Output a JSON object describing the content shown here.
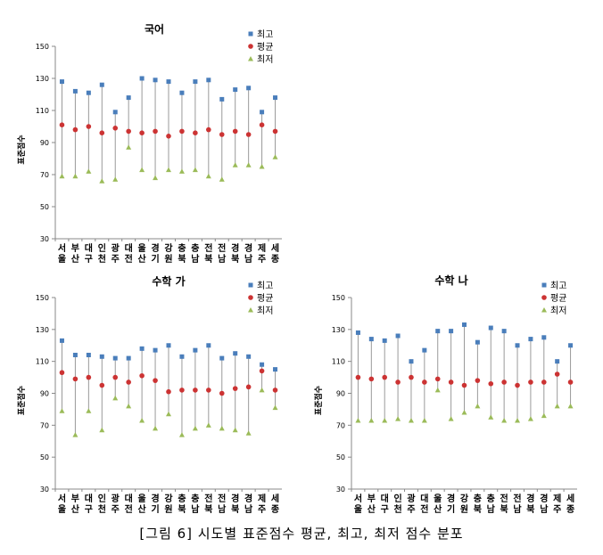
{
  "caption": "[그림 6] 시도별 표준점수 평균, 최고, 최저 점수 분포",
  "chart_data": [
    {
      "type": "scatter",
      "title": "국어",
      "ylabel": "표준점수",
      "ylim": [
        30,
        150
      ],
      "yticks": [
        30,
        50,
        70,
        90,
        110,
        130,
        150
      ],
      "grid": false,
      "legend_position": "top-right",
      "categories": [
        "서울",
        "부산",
        "대구",
        "인천",
        "광주",
        "대전",
        "울산",
        "경기",
        "강원",
        "충북",
        "충남",
        "전북",
        "전남",
        "경북",
        "경남",
        "제주",
        "세종"
      ],
      "series": [
        {
          "name": "최고",
          "color": "#4a7ebb",
          "marker": "square",
          "values": [
            128,
            122,
            121,
            126,
            109,
            118,
            130,
            129,
            128,
            121,
            128,
            129,
            117,
            123,
            124,
            109,
            118
          ]
        },
        {
          "name": "평균",
          "color": "#cc3333",
          "marker": "circle",
          "values": [
            101,
            98,
            100,
            96,
            99,
            97,
            96,
            97,
            94,
            97,
            96,
            98,
            95,
            97,
            95,
            101,
            97
          ]
        },
        {
          "name": "최저",
          "color": "#9bbb59",
          "marker": "triangle",
          "values": [
            69,
            69,
            72,
            66,
            67,
            87,
            73,
            68,
            73,
            72,
            73,
            69,
            67,
            76,
            76,
            75,
            81
          ]
        }
      ]
    },
    {
      "type": "scatter",
      "title": "수학 가",
      "ylabel": "표준점수",
      "ylim": [
        30,
        150
      ],
      "yticks": [
        30,
        50,
        70,
        90,
        110,
        130,
        150
      ],
      "grid": false,
      "legend_position": "top-right",
      "categories": [
        "서울",
        "부산",
        "대구",
        "인천",
        "광주",
        "대전",
        "울산",
        "경기",
        "강원",
        "충북",
        "충남",
        "전북",
        "전남",
        "경북",
        "경남",
        "제주",
        "세종"
      ],
      "series": [
        {
          "name": "최고",
          "color": "#4a7ebb",
          "marker": "square",
          "values": [
            123,
            114,
            114,
            113,
            112,
            112,
            118,
            117,
            120,
            113,
            117,
            120,
            112,
            115,
            113,
            108,
            105
          ]
        },
        {
          "name": "평균",
          "color": "#cc3333",
          "marker": "circle",
          "values": [
            103,
            99,
            100,
            95,
            100,
            97,
            101,
            98,
            91,
            92,
            92,
            92,
            90,
            93,
            94,
            104,
            92
          ]
        },
        {
          "name": "최저",
          "color": "#9bbb59",
          "marker": "triangle",
          "values": [
            79,
            64,
            79,
            67,
            87,
            82,
            73,
            68,
            77,
            64,
            68,
            70,
            68,
            67,
            65,
            92,
            81
          ]
        }
      ]
    },
    {
      "type": "scatter",
      "title": "수학 나",
      "ylabel": "표준점수",
      "ylim": [
        30,
        150
      ],
      "yticks": [
        30,
        50,
        70,
        90,
        110,
        130,
        150
      ],
      "grid": false,
      "legend_position": "top-right",
      "categories": [
        "서울",
        "부산",
        "대구",
        "인천",
        "광주",
        "대전",
        "울산",
        "경기",
        "강원",
        "충북",
        "충남",
        "전북",
        "전남",
        "경북",
        "경남",
        "제주",
        "세종"
      ],
      "series": [
        {
          "name": "최고",
          "color": "#4a7ebb",
          "marker": "square",
          "values": [
            128,
            124,
            123,
            126,
            110,
            117,
            129,
            129,
            133,
            122,
            131,
            129,
            120,
            124,
            125,
            110,
            120
          ]
        },
        {
          "name": "평균",
          "color": "#cc3333",
          "marker": "circle",
          "values": [
            100,
            99,
            100,
            97,
            100,
            97,
            99,
            97,
            95,
            98,
            96,
            97,
            95,
            97,
            97,
            102,
            97
          ]
        },
        {
          "name": "최저",
          "color": "#9bbb59",
          "marker": "triangle",
          "values": [
            73,
            73,
            73,
            74,
            73,
            73,
            92,
            74,
            78,
            82,
            75,
            73,
            73,
            74,
            76,
            82,
            82
          ]
        }
      ]
    }
  ]
}
